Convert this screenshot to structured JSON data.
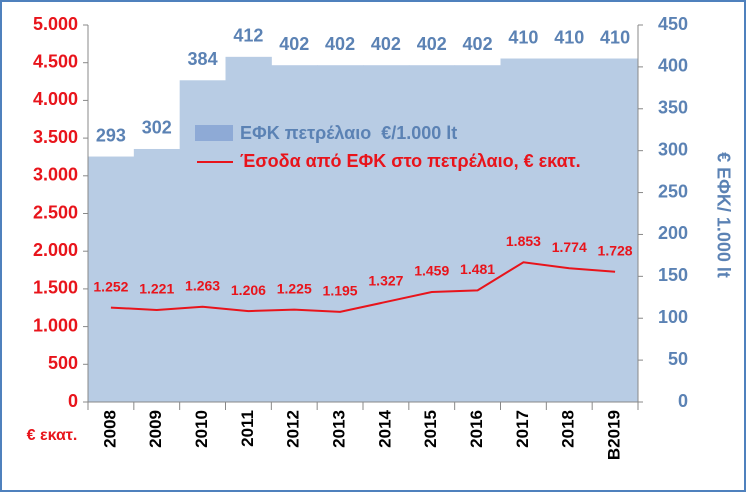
{
  "chart_data": {
    "type": "bar",
    "categories": [
      "2008",
      "2009",
      "2010",
      "2011",
      "2012",
      "2013",
      "2014",
      "2015",
      "2016",
      "2017",
      "2018",
      "B2019"
    ],
    "series": [
      {
        "name": "ΕΦΚ πετρέλαιο  €/1.000 lt",
        "color": "#b8cce4",
        "axis": "y2",
        "values": [
          293,
          302,
          384,
          412,
          402,
          402,
          402,
          402,
          402,
          410,
          410,
          410
        ]
      },
      {
        "name": "Έσοδα από ΕΦΚ στο πετρέλαιο, € εκατ.",
        "color": "#e8141b",
        "type": "line",
        "values": [
          1252,
          1221,
          1263,
          1206,
          1225,
          1195,
          1327,
          1459,
          1481,
          1853,
          1774,
          1728
        ],
        "value_labels": [
          "1.252",
          "1.221",
          "1.263",
          "1.206",
          "1.225",
          "1.195",
          "1.327",
          "1.459",
          "1.481",
          "1.853",
          "1.774",
          "1.728"
        ]
      }
    ],
    "ylabel": "€ εκατ.",
    "y2label": "€ ΕΦΚ/ 1.000 lt",
    "ylim": [
      0,
      5000
    ],
    "yticks": [
      0,
      500,
      {
        "value": 1000,
        "label": "1.000"
      },
      {
        "value": 1500,
        "label": "1.500"
      },
      {
        "value": 2000,
        "label": "2.000"
      },
      {
        "value": 2500,
        "label": "2.500"
      },
      {
        "value": 3000,
        "label": "3.000"
      },
      {
        "value": 3500,
        "label": "3.500"
      },
      {
        "value": 4000,
        "label": "4.000"
      },
      {
        "value": 4500,
        "label": "4.500"
      },
      {
        "value": 5000,
        "label": "5.000"
      }
    ],
    "y2lim": [
      0,
      450
    ],
    "y2ticks": [
      0,
      50,
      100,
      150,
      200,
      250,
      300,
      350,
      400,
      450
    ]
  }
}
